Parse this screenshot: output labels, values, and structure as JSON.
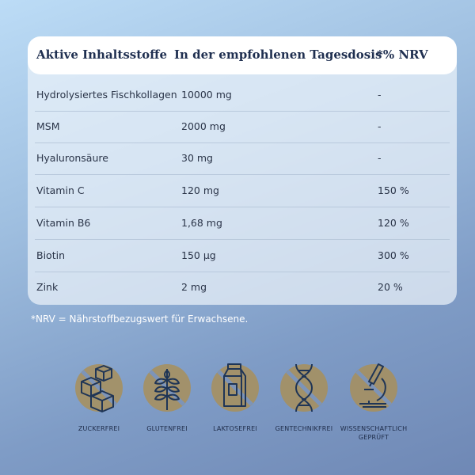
{
  "table": {
    "headers": {
      "ingredient": "Aktive Inhaltsstoffe",
      "dose": "In der empfohlenen Tagesdosis",
      "nrv": "*% NRV"
    },
    "rows": [
      {
        "ingredient": "Hydrolysiertes Fischkollagen",
        "dose": "10000 mg",
        "nrv": "-"
      },
      {
        "ingredient": "MSM",
        "dose": "2000 mg",
        "nrv": "-"
      },
      {
        "ingredient": "Hyaluronsäure",
        "dose": "30 mg",
        "nrv": "-"
      },
      {
        "ingredient": "Vitamin C",
        "dose": "120 mg",
        "nrv": "150 %"
      },
      {
        "ingredient": "Vitamin B6",
        "dose": "1,68 mg",
        "nrv": "120 %"
      },
      {
        "ingredient": "Biotin",
        "dose": "150 µg",
        "nrv": "300 %"
      },
      {
        "ingredient": "Zink",
        "dose": "2 mg",
        "nrv": "20 %"
      }
    ]
  },
  "footnote": "*NRV = Nährstoffbezugswert für Erwachsene.",
  "features": [
    {
      "label": "ZUCKERFREI",
      "icon": "sugar-cubes-icon"
    },
    {
      "label": "GLUTENFREI",
      "icon": "wheat-icon"
    },
    {
      "label": "LAKTOSEFREI",
      "icon": "milk-carton-icon"
    },
    {
      "label": "GENTECHNIKFREI",
      "icon": "dna-icon"
    },
    {
      "label": "WISSENSCHAFTLICH GEPRÜFT",
      "icon": "microscope-icon"
    }
  ],
  "colors": {
    "badge_fill": "#a88f5a",
    "icon_stroke": "#1f3556",
    "header_text": "#1f2f50"
  }
}
